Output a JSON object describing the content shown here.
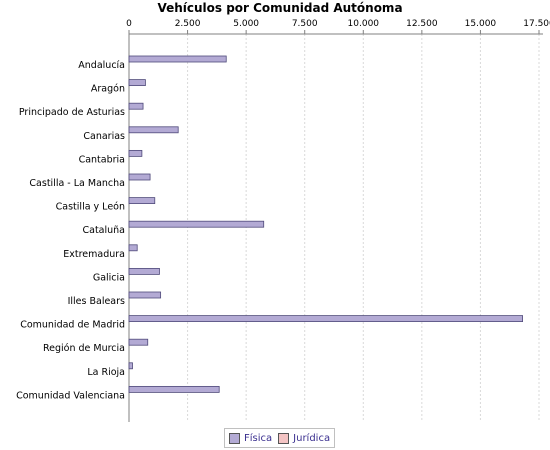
{
  "chart_data": {
    "type": "bar",
    "orientation": "horizontal",
    "title": "Vehículos por Comunidad Autónoma",
    "xlim": [
      0,
      17500
    ],
    "ticks": [
      0,
      2500,
      5000,
      7500,
      10000,
      12500,
      15000,
      17500
    ],
    "tick_labels": [
      "0",
      "2.500",
      "5.000",
      "7.500",
      "10.000",
      "12.500",
      "15.000",
      "17.500"
    ],
    "grid": true,
    "legend_position": "bottom",
    "categories": [
      "Andalucía",
      "Aragón",
      "Principado de Asturias",
      "Canarias",
      "Cantabria",
      "Castilla - La Mancha",
      "Castilla y León",
      "Cataluña",
      "Extremadura",
      "Galicia",
      "Illes Balears",
      "Comunidad de Madrid",
      "Región de Murcia",
      "La Rioja",
      "Comunidad Valenciana"
    ],
    "series": [
      {
        "name": "Física",
        "color": "#b3aad4",
        "values": [
          4150,
          700,
          600,
          2100,
          550,
          900,
          1100,
          5750,
          350,
          1300,
          1350,
          16800,
          800,
          150,
          3850
        ]
      },
      {
        "name": "Jurídica",
        "color": "#f4c4c4",
        "values": [
          0,
          0,
          0,
          0,
          0,
          0,
          0,
          0,
          0,
          0,
          0,
          0,
          0,
          0,
          0
        ]
      }
    ]
  }
}
